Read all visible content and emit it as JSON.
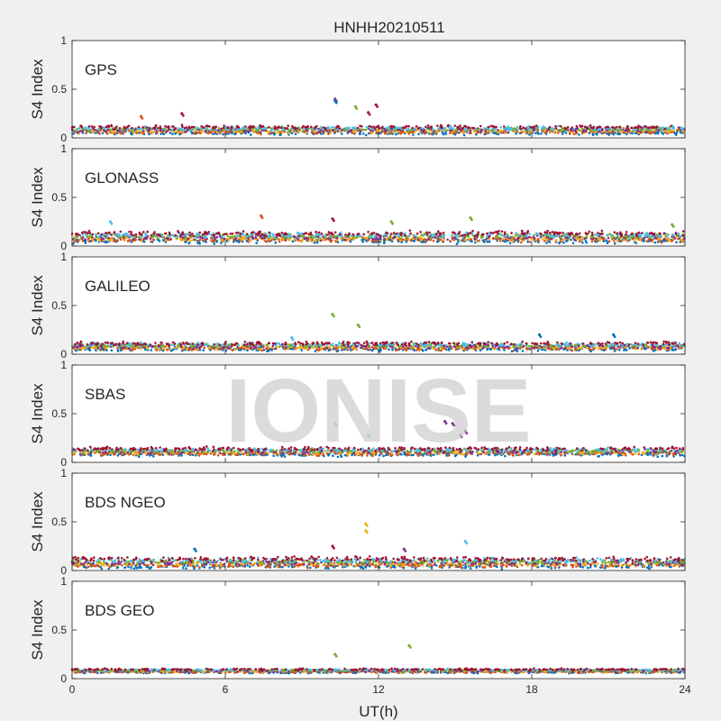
{
  "figure": {
    "title": "HNHH20210511",
    "xlabel": "UT(h)",
    "watermark": "IONISE"
  },
  "chart_data": {
    "type": "scatter",
    "title": "HNHH20210511",
    "xlabel": "UT(h)",
    "xlim": [
      0,
      24
    ],
    "xticks": [
      0,
      6,
      12,
      18,
      24
    ],
    "grid": false,
    "palette": [
      "#0072BD",
      "#D95319",
      "#EDB120",
      "#7E2F8E",
      "#77AC30",
      "#4DBEEE",
      "#A2142F"
    ],
    "panels": [
      {
        "label": "GPS",
        "ylabel": "S4 Index",
        "ylim": [
          0,
          1
        ],
        "yticks": [
          0,
          0.5,
          1
        ],
        "baseline": 0.08,
        "spread": 0.04,
        "spikes": [
          {
            "x": 10.3,
            "y": 0.4,
            "series": 3
          },
          {
            "x": 10.3,
            "y": 0.38,
            "series": 0
          },
          {
            "x": 11.1,
            "y": 0.32,
            "series": 4
          },
          {
            "x": 11.9,
            "y": 0.34,
            "series": 6
          },
          {
            "x": 11.6,
            "y": 0.26,
            "series": 6
          },
          {
            "x": 4.3,
            "y": 0.25,
            "series": 6
          },
          {
            "x": 2.7,
            "y": 0.22,
            "series": 1
          }
        ]
      },
      {
        "label": "GLONASS",
        "ylabel": "S4 Index",
        "ylim": [
          0,
          1
        ],
        "yticks": [
          0,
          0.5,
          1
        ],
        "baseline": 0.09,
        "spread": 0.05,
        "spikes": [
          {
            "x": 7.4,
            "y": 0.31,
            "series": 1
          },
          {
            "x": 10.2,
            "y": 0.28,
            "series": 6
          },
          {
            "x": 15.6,
            "y": 0.29,
            "series": 4
          },
          {
            "x": 23.5,
            "y": 0.22,
            "series": 4
          },
          {
            "x": 1.5,
            "y": 0.25,
            "series": 5
          },
          {
            "x": 12.5,
            "y": 0.25,
            "series": 4
          }
        ]
      },
      {
        "label": "GALILEO",
        "ylabel": "S4 Index",
        "ylim": [
          0,
          1
        ],
        "yticks": [
          0,
          0.5,
          1
        ],
        "baseline": 0.08,
        "spread": 0.04,
        "spikes": [
          {
            "x": 10.2,
            "y": 0.41,
            "series": 4
          },
          {
            "x": 11.2,
            "y": 0.3,
            "series": 4
          },
          {
            "x": 18.3,
            "y": 0.2,
            "series": 0
          },
          {
            "x": 21.2,
            "y": 0.2,
            "series": 0
          },
          {
            "x": 8.6,
            "y": 0.17,
            "series": 5
          }
        ]
      },
      {
        "label": "SBAS",
        "ylabel": "S4 Index",
        "ylim": [
          0,
          1
        ],
        "yticks": [
          0,
          0.5,
          1
        ],
        "baseline": 0.11,
        "spread": 0.04,
        "spikes": [
          {
            "x": 14.6,
            "y": 0.42,
            "series": 3
          },
          {
            "x": 14.9,
            "y": 0.4,
            "series": 3
          },
          {
            "x": 15.2,
            "y": 0.28,
            "series": 3
          },
          {
            "x": 15.4,
            "y": 0.32,
            "series": 3
          },
          {
            "x": 10.3,
            "y": 0.4,
            "series": 5
          },
          {
            "x": 11.6,
            "y": 0.28,
            "series": 5
          }
        ]
      },
      {
        "label": "BDS NGEO",
        "ylabel": "S4 Index",
        "ylim": [
          0,
          1
        ],
        "yticks": [
          0,
          0.5,
          1
        ],
        "baseline": 0.08,
        "spread": 0.05,
        "spikes": [
          {
            "x": 11.5,
            "y": 0.48,
            "series": 2
          },
          {
            "x": 11.5,
            "y": 0.41,
            "series": 2
          },
          {
            "x": 10.2,
            "y": 0.25,
            "series": 6
          },
          {
            "x": 15.4,
            "y": 0.3,
            "series": 5
          },
          {
            "x": 4.8,
            "y": 0.22,
            "series": 0
          },
          {
            "x": 13.0,
            "y": 0.22,
            "series": 3
          }
        ]
      },
      {
        "label": "BDS GEO",
        "ylabel": "S4 Index",
        "ylim": [
          0,
          1
        ],
        "yticks": [
          0,
          0.5,
          1
        ],
        "baseline": 0.08,
        "spread": 0.02,
        "spikes": [
          {
            "x": 10.3,
            "y": 0.25,
            "series": 4
          },
          {
            "x": 13.2,
            "y": 0.34,
            "series": 4
          }
        ]
      }
    ]
  }
}
